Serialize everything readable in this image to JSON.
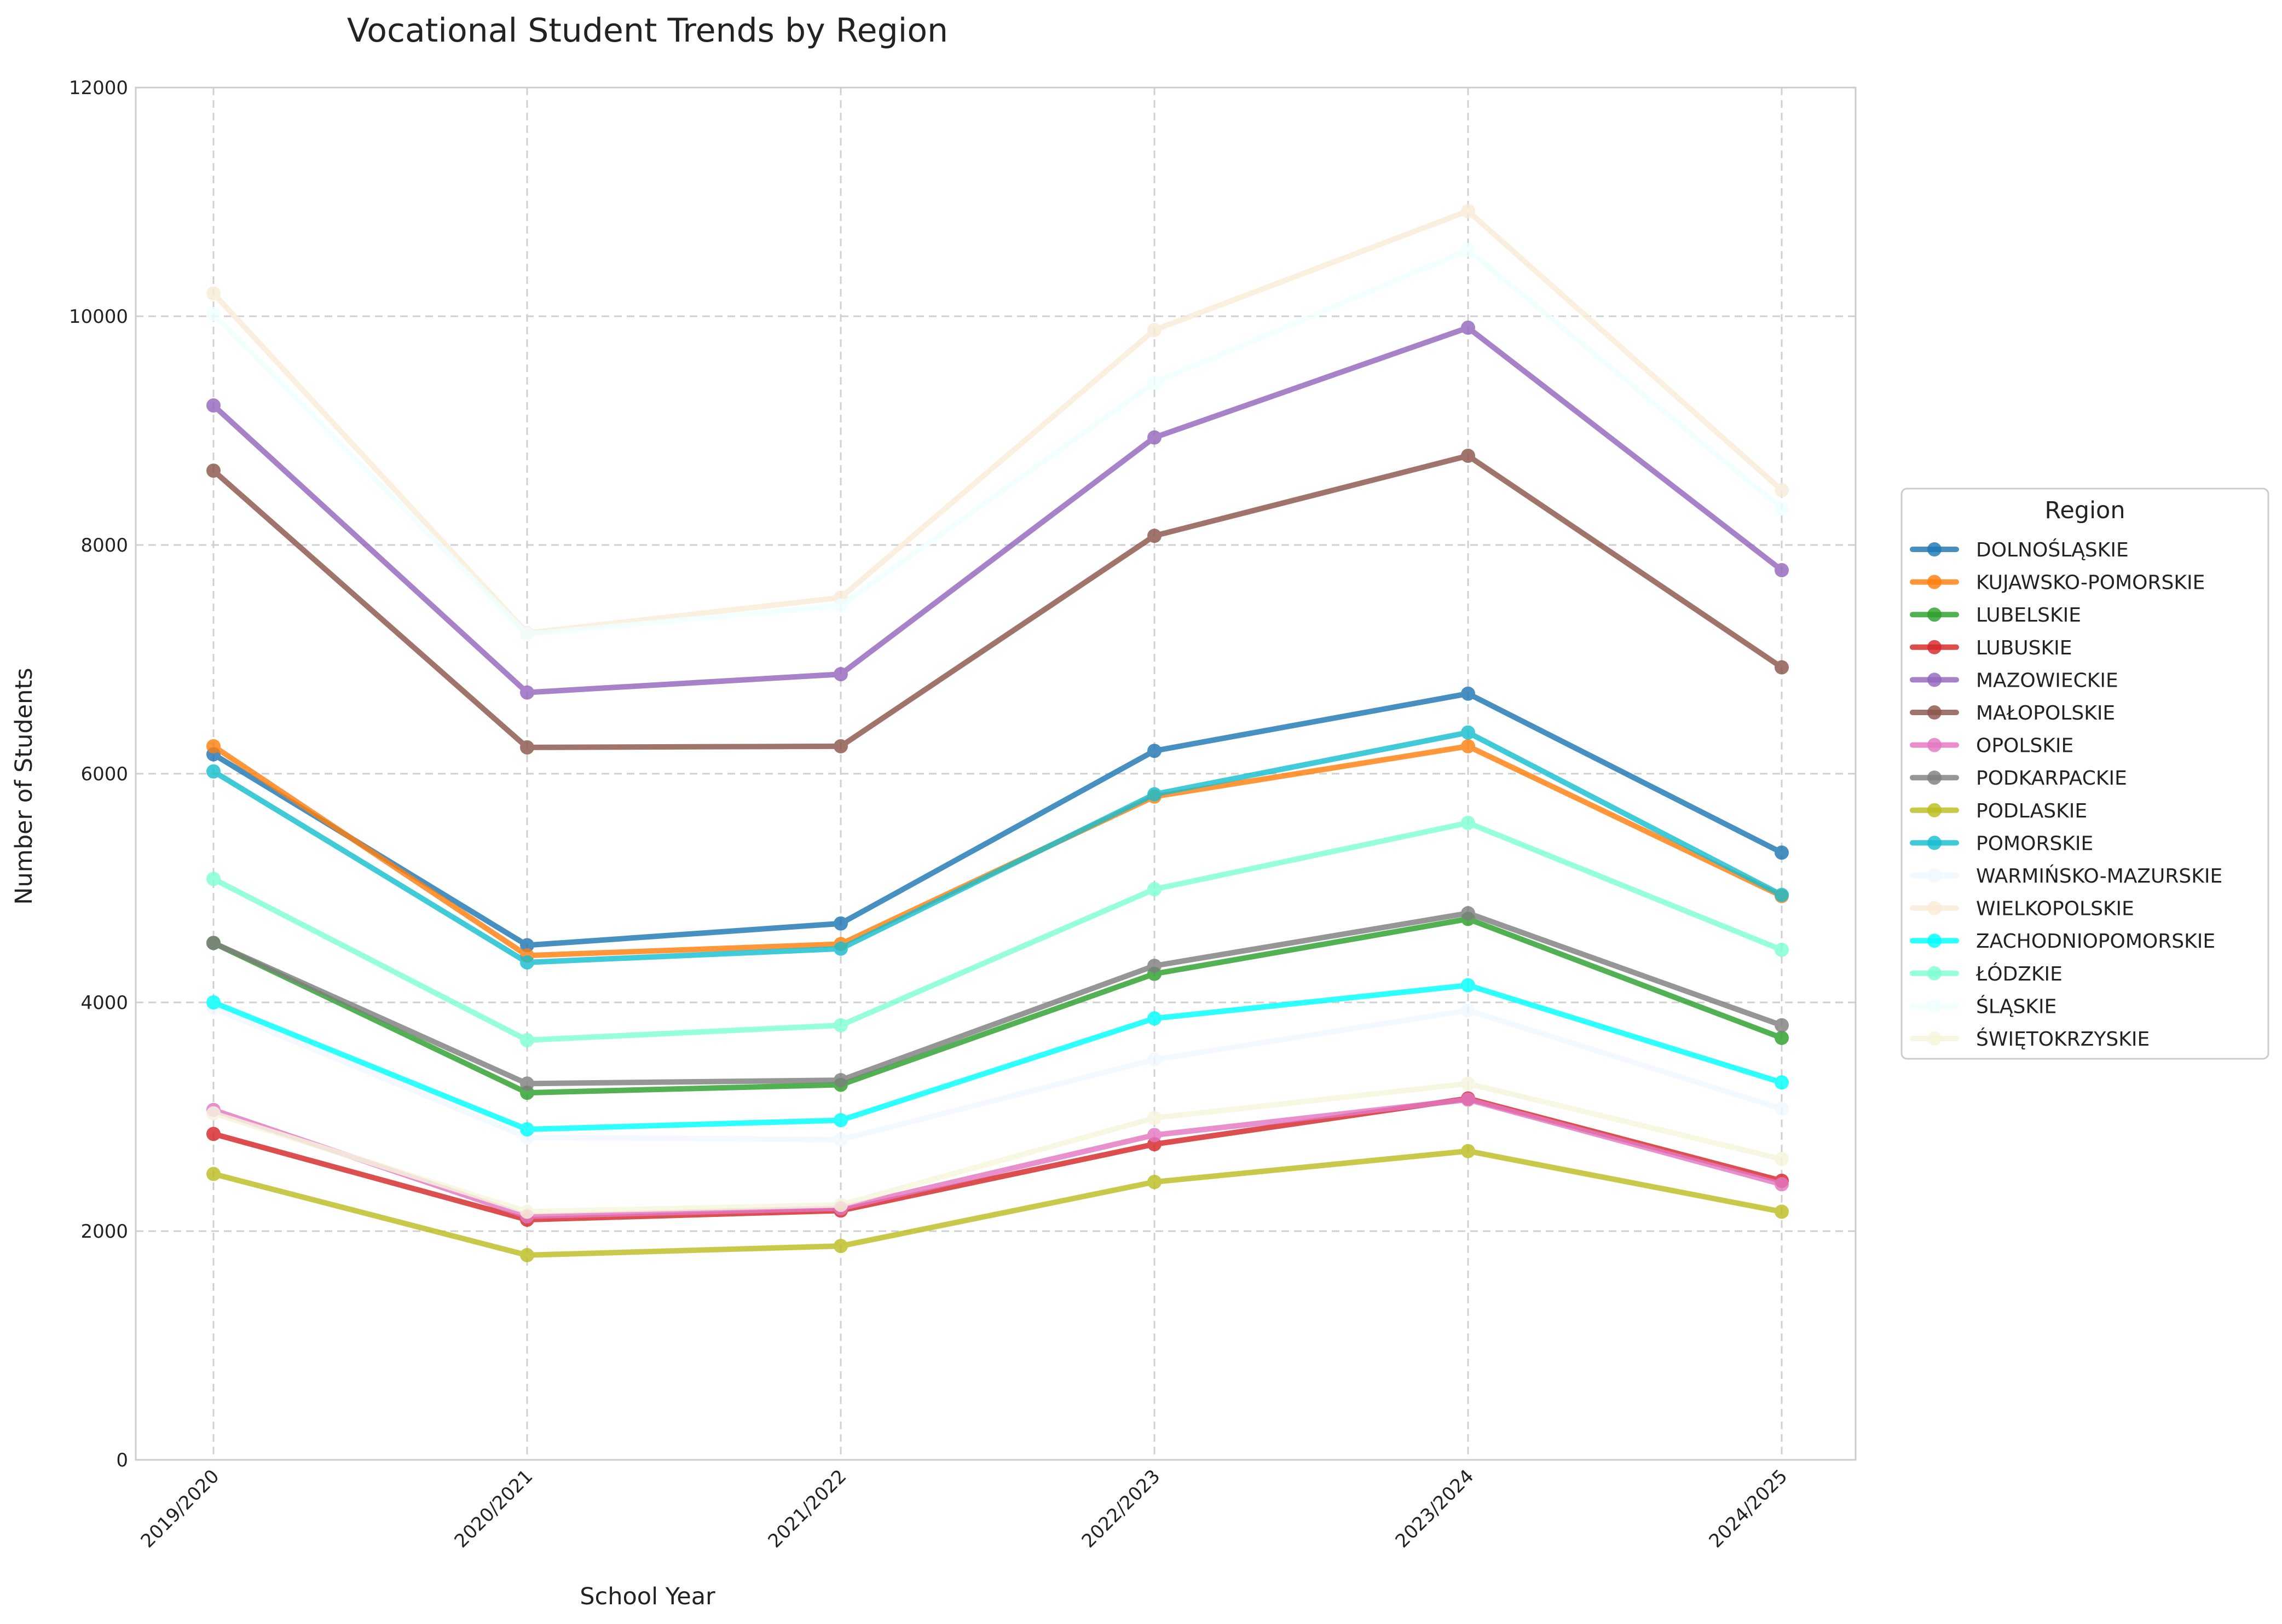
{
  "chart_data": {
    "type": "line",
    "title": "Vocational Student Trends by Region",
    "xlabel": "School Year",
    "ylabel": "Number of Students",
    "ylim": [
      0,
      12000
    ],
    "yticks": [
      "0",
      "2000",
      "4000",
      "6000",
      "8000",
      "10000",
      "12000"
    ],
    "grid": true,
    "legend_title": "Region",
    "legend_position": "right",
    "categories": [
      "2019/2020",
      "2020/2021",
      "2021/2022",
      "2022/2023",
      "2023/2024",
      "2024/2025"
    ],
    "series": [
      {
        "name": "DOLNOŚLĄSKIE",
        "color": "#1f77b4",
        "values": [
          6170,
          4500,
          4690,
          6200,
          6700,
          5310
        ]
      },
      {
        "name": "KUJAWSKO-POMORSKIE",
        "color": "#ff7f0e",
        "values": [
          6240,
          4410,
          4510,
          5800,
          6240,
          4930
        ]
      },
      {
        "name": "LUBELSKIE",
        "color": "#2ca02c",
        "values": [
          4520,
          3210,
          3280,
          4250,
          4730,
          3690
        ]
      },
      {
        "name": "LUBUSKIE",
        "color": "#d62728",
        "values": [
          2850,
          2100,
          2180,
          2760,
          3160,
          2440
        ]
      },
      {
        "name": "MAZOWIECKIE",
        "color": "#9467bd",
        "values": [
          9220,
          6710,
          6870,
          8940,
          9900,
          7780
        ]
      },
      {
        "name": "MAŁOPOLSKIE",
        "color": "#8c564b",
        "values": [
          8650,
          6230,
          6240,
          8080,
          8780,
          6930
        ]
      },
      {
        "name": "OPOLSKIE",
        "color": "#e377c2",
        "values": [
          3060,
          2130,
          2200,
          2840,
          3150,
          2410
        ]
      },
      {
        "name": "PODKARPACKIE",
        "color": "#7f7f7f",
        "values": [
          4520,
          3290,
          3320,
          4320,
          4780,
          3800
        ]
      },
      {
        "name": "PODLASKIE",
        "color": "#bcbd22",
        "values": [
          2500,
          1790,
          1870,
          2430,
          2700,
          2170
        ]
      },
      {
        "name": "POMORSKIE",
        "color": "#17becf",
        "values": [
          6020,
          4350,
          4470,
          5820,
          6360,
          4940
        ]
      },
      {
        "name": "WARMIŃSKO-MAZURSKIE",
        "color": "#f0f8ff",
        "values": [
          3950,
          2820,
          2800,
          3500,
          3930,
          3070
        ]
      },
      {
        "name": "WIELKOPOLSKIE",
        "color": "#faebd7",
        "values": [
          10200,
          7230,
          7540,
          9880,
          10920,
          8480
        ]
      },
      {
        "name": "ZACHODNIOPOMORSKIE",
        "color": "#00ffff",
        "values": [
          4000,
          2890,
          2970,
          3860,
          4150,
          3300
        ]
      },
      {
        "name": "ŁÓDZKIE",
        "color": "#7fffd4",
        "values": [
          5080,
          3670,
          3800,
          4990,
          5570,
          4460
        ]
      },
      {
        "name": "ŚLĄSKIE",
        "color": "#f0ffff",
        "values": [
          10020,
          7220,
          7470,
          9420,
          10580,
          8320
        ]
      },
      {
        "name": "ŚWIĘTOKRZYSKIE",
        "color": "#f5f5dc",
        "values": [
          3030,
          2170,
          2230,
          2990,
          3290,
          2630
        ]
      }
    ]
  }
}
